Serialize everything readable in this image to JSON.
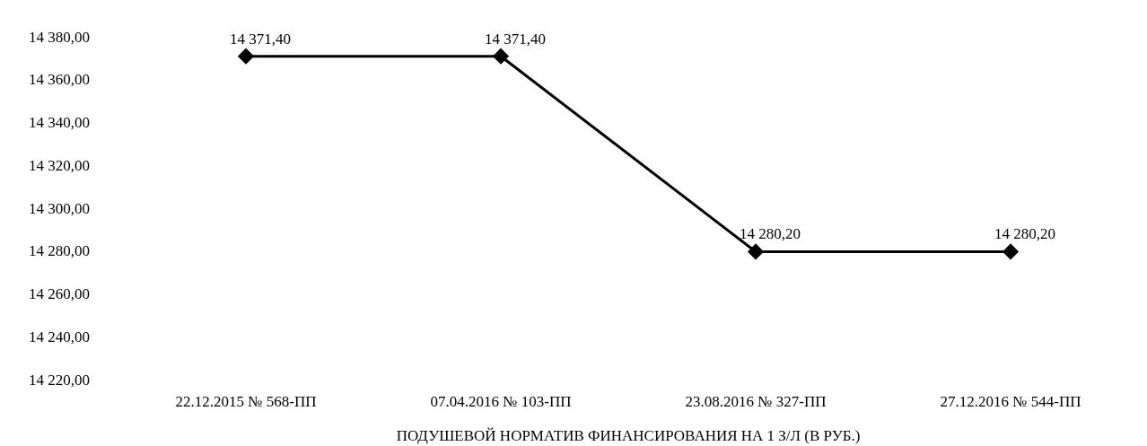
{
  "chart_data": {
    "type": "line",
    "xlabel": "ПОДУШЕВОЙ НОРМАТИВ ФИНАНСИРОВАНИЯ НА 1 З/Л (В РУБ.)",
    "categories": [
      "22.12.2015 № 568-ПП",
      "07.04.2016 № 103-ПП",
      "23.08.2016 № 327-ПП",
      "27.12.2016 № 544-ПП"
    ],
    "series": [
      {
        "color": "#000000",
        "values": [
          14371.4,
          14371.4,
          14280.2,
          14280.2
        ],
        "value_labels": [
          "14 371,40",
          "14 371,40",
          "14 280,20",
          "14 280,20"
        ]
      }
    ],
    "ylim": [
      14220,
      14380
    ],
    "yticks": [
      {
        "value": 14220,
        "label": "14 220,00"
      },
      {
        "value": 14240,
        "label": "14 240,00"
      },
      {
        "value": 14260,
        "label": "14 260,00"
      },
      {
        "value": 14280,
        "label": "14 280,00"
      },
      {
        "value": 14300,
        "label": "14 300,00"
      },
      {
        "value": 14320,
        "label": "14 320,00"
      },
      {
        "value": 14340,
        "label": "14 340,00"
      },
      {
        "value": 14360,
        "label": "14 360,00"
      },
      {
        "value": 14380,
        "label": "14 380,00"
      }
    ],
    "marker": "diamond",
    "line_style": "solid",
    "grid": false,
    "legend": false
  }
}
